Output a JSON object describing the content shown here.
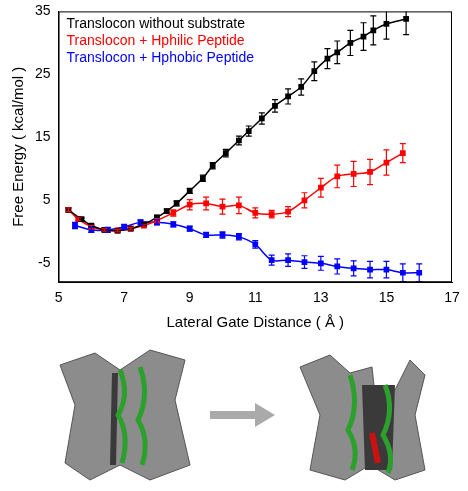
{
  "chart_data": {
    "type": "line",
    "x_label": "Lateral Gate Distance ( Å )",
    "y_label": "Free Energy ( kcal/mol )",
    "xlim": [
      5,
      17
    ],
    "xticks": [
      5,
      7,
      9,
      11,
      13,
      15,
      17
    ],
    "ylim": [
      -8,
      35
    ],
    "yticks": [
      -5,
      5,
      15,
      25,
      35
    ],
    "grid": false,
    "legend": "upper left",
    "marker": "square",
    "series": [
      {
        "name": "Translocon without substrate",
        "color": "#000000",
        "x": [
          5.3,
          5.7,
          6.0,
          6.4,
          6.8,
          7.2,
          7.6,
          8.0,
          8.3,
          8.6,
          9.0,
          9.4,
          9.7,
          10.1,
          10.5,
          10.8,
          11.2,
          11.6,
          12.0,
          12.4,
          12.8,
          13.2,
          13.5,
          13.9,
          14.3,
          14.6,
          15.0,
          15.6
        ],
        "values": [
          3.5,
          2.0,
          1.0,
          0.3,
          0.2,
          0.5,
          1.2,
          2.3,
          3.3,
          4.5,
          6.5,
          8.5,
          10.5,
          12.5,
          14.5,
          16.0,
          18.0,
          20.0,
          21.5,
          23.0,
          25.5,
          27.5,
          28.5,
          30.0,
          31.0,
          32.0,
          33.0,
          33.8
        ],
        "errors": [
          0.3,
          0.2,
          0.2,
          0.2,
          0.2,
          0.2,
          0.2,
          0.3,
          0.3,
          0.4,
          0.4,
          0.5,
          0.5,
          0.6,
          0.7,
          0.8,
          0.9,
          1.0,
          1.2,
          1.3,
          1.5,
          1.6,
          1.8,
          2.0,
          2.2,
          2.3,
          2.4,
          2.5
        ]
      },
      {
        "name": "Translocon + Hphilic Peptide",
        "color": "#ff0000",
        "x": [
          5.3,
          5.6,
          6.0,
          6.4,
          6.8,
          7.2,
          7.6,
          8.0,
          8.5,
          9.0,
          9.5,
          10.0,
          10.5,
          11.0,
          11.5,
          12.0,
          12.5,
          13.0,
          13.5,
          14.0,
          14.5,
          15.0,
          15.5
        ],
        "values": [
          3.5,
          2.0,
          0.8,
          0.3,
          0.2,
          0.5,
          1.0,
          1.8,
          3.0,
          4.3,
          4.5,
          4.0,
          4.2,
          3.0,
          2.8,
          3.2,
          5.0,
          7.0,
          8.8,
          9.2,
          9.5,
          11.0,
          12.5
        ],
        "errors": [
          0.3,
          0.2,
          0.2,
          0.2,
          0.2,
          0.2,
          0.2,
          0.3,
          0.5,
          0.8,
          1.0,
          1.2,
          1.3,
          0.8,
          0.6,
          0.8,
          1.2,
          1.5,
          1.8,
          2.0,
          2.0,
          2.0,
          1.5
        ]
      },
      {
        "name": "Translocon + Hphobic Peptide",
        "color": "#0000ff",
        "x": [
          5.5,
          6.0,
          6.5,
          7.0,
          7.5,
          8.0,
          8.5,
          9.0,
          9.5,
          10.0,
          10.5,
          11.0,
          11.5,
          12.0,
          12.5,
          13.0,
          13.5,
          14.0,
          14.5,
          15.0,
          15.5,
          16.0
        ],
        "values": [
          1.0,
          0.3,
          0.3,
          0.8,
          1.5,
          1.5,
          1.2,
          0.5,
          -0.5,
          -0.5,
          -0.8,
          -2.0,
          -4.5,
          -4.5,
          -4.8,
          -5.0,
          -5.5,
          -5.8,
          -6.0,
          -6.0,
          -6.5,
          -6.5
        ],
        "errors": [
          0.5,
          0.4,
          0.4,
          0.4,
          0.4,
          0.4,
          0.4,
          0.4,
          0.4,
          0.5,
          0.5,
          0.6,
          0.8,
          1.0,
          1.0,
          1.1,
          1.2,
          1.2,
          1.3,
          1.3,
          1.4,
          1.4
        ]
      }
    ]
  }
}
